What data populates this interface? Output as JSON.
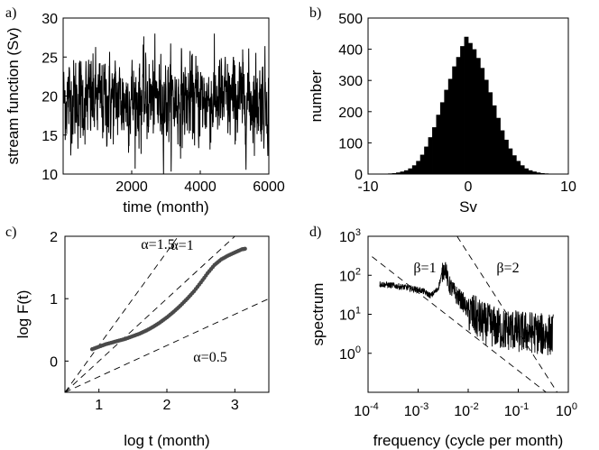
{
  "chart_data": [
    {
      "panel": "a)",
      "type": "line",
      "title": "",
      "xlabel": "time (month)",
      "ylabel": "stream function (Sv)",
      "xlim": [
        0,
        6000
      ],
      "ylim": [
        10,
        30
      ],
      "xticks": [
        2000,
        4000,
        6000
      ],
      "yticks": [
        10,
        15,
        20,
        25,
        30
      ],
      "series": [
        {
          "color": "#000000",
          "mean": 19.5,
          "std": 2.8,
          "min": 10,
          "max": 28,
          "n": 6000
        }
      ]
    },
    {
      "panel": "b)",
      "type": "bar",
      "title": "",
      "xlabel": "Sv",
      "ylabel": "number",
      "xlim": [
        -10,
        10
      ],
      "ylim": [
        0,
        500
      ],
      "xticks": [
        -10,
        0,
        10
      ],
      "yticks": [
        0,
        100,
        200,
        300,
        400,
        500
      ],
      "bin_width": 0.4,
      "bin_centers": [
        -7.8,
        -7.4,
        -7.0,
        -6.6,
        -6.2,
        -5.8,
        -5.4,
        -5.0,
        -4.6,
        -4.2,
        -3.8,
        -3.4,
        -3.0,
        -2.6,
        -2.2,
        -1.8,
        -1.4,
        -1.0,
        -0.6,
        -0.2,
        0.2,
        0.6,
        1.0,
        1.4,
        1.8,
        2.2,
        2.6,
        3.0,
        3.4,
        3.8,
        4.2,
        4.6,
        5.0,
        5.4,
        5.8,
        6.2,
        6.6,
        7.0,
        7.4,
        7.8
      ],
      "values": [
        2,
        3,
        5,
        8,
        12,
        18,
        28,
        42,
        62,
        88,
        118,
        150,
        190,
        230,
        270,
        305,
        345,
        375,
        410,
        440,
        420,
        400,
        372,
        340,
        302,
        262,
        220,
        180,
        140,
        110,
        82,
        60,
        42,
        28,
        18,
        12,
        8,
        5,
        3,
        2
      ],
      "color": "#000000"
    },
    {
      "panel": "c)",
      "type": "scatter",
      "title": "",
      "xlabel": "log t (month)",
      "ylabel": "log F(t)",
      "xlim": [
        0.5,
        3.5
      ],
      "ylim": [
        -0.5,
        2
      ],
      "xticks": [
        1,
        2,
        3
      ],
      "yticks": [
        0,
        1,
        2
      ],
      "series": [
        {
          "color": "#4a4a4a",
          "x": [
            0.9,
            1.0,
            1.1,
            1.2,
            1.3,
            1.4,
            1.5,
            1.6,
            1.7,
            1.8,
            1.9,
            2.0,
            2.1,
            2.2,
            2.3,
            2.4,
            2.5,
            2.6,
            2.7,
            2.8,
            2.9,
            3.0,
            3.1,
            3.15
          ],
          "y": [
            0.19,
            0.23,
            0.27,
            0.3,
            0.33,
            0.36,
            0.4,
            0.44,
            0.49,
            0.55,
            0.62,
            0.7,
            0.79,
            0.89,
            1.0,
            1.12,
            1.26,
            1.41,
            1.54,
            1.63,
            1.69,
            1.74,
            1.79,
            1.8
          ]
        }
      ],
      "reference_lines": [
        {
          "label": "α=1.5",
          "slope": 1.5,
          "origin": [
            0.5,
            -0.5
          ]
        },
        {
          "label": "α=1",
          "slope": 1,
          "origin": [
            0.5,
            -0.5
          ]
        },
        {
          "label": "α=0.5",
          "slope": 0.5,
          "origin": [
            0.5,
            -0.5
          ]
        }
      ]
    },
    {
      "panel": "d)",
      "type": "line",
      "title": "",
      "xlabel": "frequency (cycle per month)",
      "ylabel": "spectrum",
      "x_scale": "log",
      "y_scale": "log",
      "xlim": [
        0.0001,
        1
      ],
      "ylim": [
        0.1,
        1000
      ],
      "xticks": [
        "10-4",
        "10-3",
        "10-2",
        "10-1",
        "100"
      ],
      "yticks": [
        "100",
        "101",
        "102",
        "103"
      ],
      "series": [
        {
          "color": "#000000",
          "x": [
            0.00017,
            0.0003,
            0.0005,
            0.0008,
            0.0012,
            0.0018,
            0.0025,
            0.003,
            0.0035,
            0.004,
            0.0045,
            0.005,
            0.006,
            0.008,
            0.01,
            0.015,
            0.02,
            0.03,
            0.05,
            0.08,
            0.1,
            0.2,
            0.3,
            0.5
          ],
          "y": [
            60,
            55,
            50,
            45,
            40,
            30,
            45,
            110,
            170,
            60,
            50,
            40,
            30,
            20,
            12,
            8,
            6,
            5,
            4,
            4,
            3.5,
            3.5,
            3,
            3
          ]
        }
      ],
      "reference_lines": [
        {
          "label": "β=1",
          "slope": -1
        },
        {
          "label": "β=2",
          "slope": -2
        }
      ]
    }
  ]
}
